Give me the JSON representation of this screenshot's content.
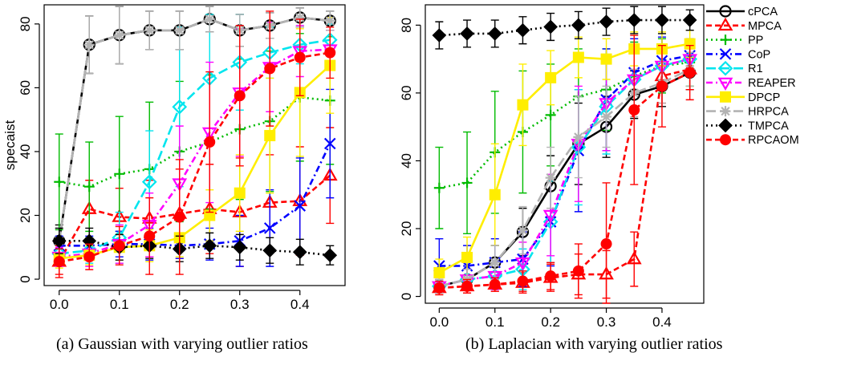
{
  "captions": {
    "a": "(a) Gaussian with varying outlier ratios",
    "b": "(b) Laplacian with varying outlier ratios"
  },
  "chart_data": [
    {
      "type": "line",
      "panel": "a",
      "title": "",
      "xlabel": "",
      "ylabel": "specaist",
      "xlim": [
        -0.025,
        0.475
      ],
      "ylim": [
        -2,
        86
      ],
      "x_ticks": [
        0.0,
        0.1,
        0.2,
        0.3,
        0.4
      ],
      "y_ticks": [
        0,
        20,
        40,
        60,
        80
      ],
      "x_tick_labels": [
        "0.0",
        "0.1",
        "0.2",
        "0.3",
        "0.4"
      ],
      "y_tick_labels": [
        "0",
        "20",
        "40",
        "60",
        "80"
      ],
      "x": [
        0.0,
        0.05,
        0.1,
        0.15,
        0.2,
        0.25,
        0.3,
        0.35,
        0.4,
        0.45
      ],
      "legend": "none",
      "series": [
        {
          "name": "cPCA",
          "color": "#000000",
          "dash": "solid",
          "marker": "circle",
          "values": [
            12,
            73.5,
            76.5,
            78,
            78,
            81.5,
            78,
            79.5,
            82,
            81
          ],
          "err": [
            5,
            9,
            9,
            6,
            6,
            4,
            5,
            4,
            3,
            3
          ]
        },
        {
          "name": "MPCA",
          "color": "#ff0000",
          "dash": "dash",
          "marker": "triangle",
          "values": [
            5.5,
            22,
            19.5,
            19,
            20.5,
            22,
            21,
            24,
            24.5,
            32.5
          ],
          "err": [
            5,
            9,
            9,
            12,
            14,
            14,
            17,
            15,
            17,
            15
          ]
        },
        {
          "name": "PP",
          "color": "#00bb00",
          "dash": "dot",
          "marker": "plus",
          "values": [
            30.5,
            29,
            33,
            34.5,
            40,
            43,
            47,
            49.5,
            57,
            56
          ],
          "err": [
            15,
            14,
            18,
            21,
            22,
            21,
            22,
            22,
            20,
            20
          ]
        },
        {
          "name": "CoP",
          "color": "#0000ff",
          "dash": "dashdot",
          "marker": "x",
          "values": [
            10.5,
            10.5,
            11,
            11,
            10.5,
            11,
            12,
            16,
            23,
            42.5
          ],
          "err": [
            3,
            3,
            4,
            5,
            4,
            5,
            8,
            12,
            15,
            17
          ]
        },
        {
          "name": "R1",
          "color": "#00e5ee",
          "dash": "longdash",
          "marker": "diamond",
          "values": [
            8,
            9,
            13,
            30.5,
            54,
            63,
            68,
            71,
            73.5,
            75
          ],
          "err": [
            3,
            4,
            8,
            16,
            25,
            20,
            15,
            8,
            6,
            5
          ]
        },
        {
          "name": "REAPER",
          "color": "#ff00ff",
          "dash": "dashdot",
          "marker": "triangle-down",
          "values": [
            7,
            8,
            11,
            17,
            30,
            46,
            58.5,
            66.5,
            71.5,
            72
          ],
          "err": [
            3,
            4,
            6,
            10,
            18,
            22,
            20,
            14,
            8,
            6
          ]
        },
        {
          "name": "DPCP",
          "color": "#ffee00",
          "dash": "solid",
          "marker": "square",
          "values": [
            6.5,
            7.5,
            10,
            10.5,
            13,
            20,
            27,
            45,
            58.5,
            67
          ],
          "err": [
            3,
            3,
            4,
            5,
            6,
            8,
            12,
            18,
            20,
            15
          ]
        },
        {
          "name": "HRPCA",
          "color": "#b3b3b3",
          "dash": "longdash",
          "marker": "asterisk",
          "values": [
            12,
            73.5,
            76.5,
            78,
            78,
            81.5,
            78,
            79.5,
            82,
            81
          ],
          "err": [
            4,
            9,
            9,
            6,
            6,
            4,
            5,
            4,
            3,
            3
          ]
        },
        {
          "name": "TMPCA",
          "color": "#000000",
          "dash": "dot",
          "marker": "filled-diamond",
          "values": [
            12,
            12,
            10,
            10.5,
            9.5,
            10.5,
            10,
            9,
            8.5,
            7.5
          ],
          "err": [
            4,
            4,
            4,
            4,
            4,
            4,
            4,
            4,
            4,
            3
          ]
        },
        {
          "name": "RPCAOM",
          "color": "#ff0000",
          "dash": "dash",
          "marker": "filled-circle",
          "values": [
            5.5,
            7,
            10.5,
            13.5,
            19.5,
            43,
            57.5,
            66,
            69.5,
            71
          ],
          "err": [
            4,
            4,
            6,
            12,
            18,
            22,
            22,
            18,
            12,
            8
          ]
        }
      ]
    },
    {
      "type": "line",
      "panel": "b",
      "title": "",
      "xlabel": "",
      "ylabel": "",
      "xlim": [
        -0.025,
        0.475
      ],
      "ylim": [
        -2,
        86
      ],
      "x_ticks": [
        0.0,
        0.1,
        0.2,
        0.3,
        0.4
      ],
      "y_ticks": [
        0,
        20,
        40,
        60,
        80
      ],
      "x_tick_labels": [
        "0.0",
        "0.1",
        "0.2",
        "0.3",
        "0.4"
      ],
      "y_tick_labels": [
        "0",
        "20",
        "40",
        "60",
        "80"
      ],
      "x": [
        0.0,
        0.05,
        0.1,
        0.15,
        0.2,
        0.25,
        0.3,
        0.35,
        0.4,
        0.45
      ],
      "legend": "right",
      "series": [
        {
          "name": "cPCA",
          "color": "#000000",
          "dash": "solid",
          "marker": "circle",
          "values": [
            3,
            5,
            10,
            19,
            32.5,
            45,
            50,
            59.5,
            62,
            66
          ],
          "err": [
            2,
            3,
            5,
            7,
            9,
            12,
            9,
            7,
            6,
            5
          ]
        },
        {
          "name": "MPCA",
          "color": "#ff0000",
          "dash": "dash",
          "marker": "triangle",
          "values": [
            2.5,
            3,
            3.5,
            4,
            5.5,
            6.5,
            6.5,
            11,
            65,
            67
          ],
          "err": [
            2,
            2,
            2,
            3,
            4,
            6,
            7,
            8,
            8,
            6
          ]
        },
        {
          "name": "PP",
          "color": "#00bb00",
          "dash": "dot",
          "marker": "plus",
          "values": [
            32,
            33.5,
            42.5,
            48.5,
            53.5,
            59,
            61,
            65,
            68,
            69
          ],
          "err": [
            12,
            15,
            18,
            18,
            15,
            14,
            12,
            10,
            8,
            7
          ]
        },
        {
          "name": "CoP",
          "color": "#0000ff",
          "dash": "dashdot",
          "marker": "x",
          "values": [
            9,
            9,
            10,
            11,
            22,
            43,
            58,
            66,
            69.5,
            71
          ],
          "err": [
            8,
            6,
            7,
            8,
            13,
            18,
            15,
            10,
            7,
            5
          ]
        },
        {
          "name": "R1",
          "color": "#00e5ee",
          "dash": "longdash",
          "marker": "diamond",
          "values": [
            3,
            5,
            6,
            8,
            22,
            44,
            56,
            64,
            68,
            70
          ],
          "err": [
            2,
            3,
            4,
            6,
            12,
            17,
            14,
            9,
            6,
            5
          ]
        },
        {
          "name": "REAPER",
          "color": "#ff00ff",
          "dash": "dashdot",
          "marker": "triangle-down",
          "values": [
            3,
            5,
            6,
            10,
            24,
            45,
            57,
            64,
            68,
            70
          ],
          "err": [
            2,
            3,
            4,
            6,
            12,
            17,
            14,
            9,
            6,
            5
          ]
        },
        {
          "name": "DPCP",
          "color": "#ffee00",
          "dash": "solid",
          "marker": "square",
          "values": [
            7,
            11.5,
            30,
            56.5,
            64.5,
            70.5,
            70,
            73,
            73,
            74.5
          ],
          "err": [
            4,
            6,
            15,
            12,
            8,
            6,
            6,
            5,
            5,
            4
          ]
        },
        {
          "name": "HRPCA",
          "color": "#b3b3b3",
          "dash": "longdash",
          "marker": "asterisk",
          "values": [
            3,
            5,
            10,
            19.5,
            35,
            47,
            53,
            60,
            63,
            67
          ],
          "err": [
            2,
            3,
            5,
            7,
            9,
            12,
            9,
            7,
            6,
            5
          ]
        },
        {
          "name": "TMPCA",
          "color": "#000000",
          "dash": "dot",
          "marker": "filled-diamond",
          "values": [
            77,
            77.5,
            77.5,
            78.5,
            79.5,
            80,
            81,
            81.5,
            81.5,
            81.5
          ],
          "err": [
            4,
            4,
            4,
            4,
            4,
            4,
            4,
            4,
            4,
            3
          ]
        },
        {
          "name": "RPCAOM",
          "color": "#ff0000",
          "dash": "dash",
          "marker": "filled-circle",
          "values": [
            2.5,
            3,
            3.5,
            4.5,
            6,
            7.5,
            15.5,
            55,
            62,
            66
          ],
          "err": [
            2,
            2,
            2,
            3,
            4,
            8,
            18,
            22,
            12,
            8
          ]
        }
      ]
    }
  ]
}
